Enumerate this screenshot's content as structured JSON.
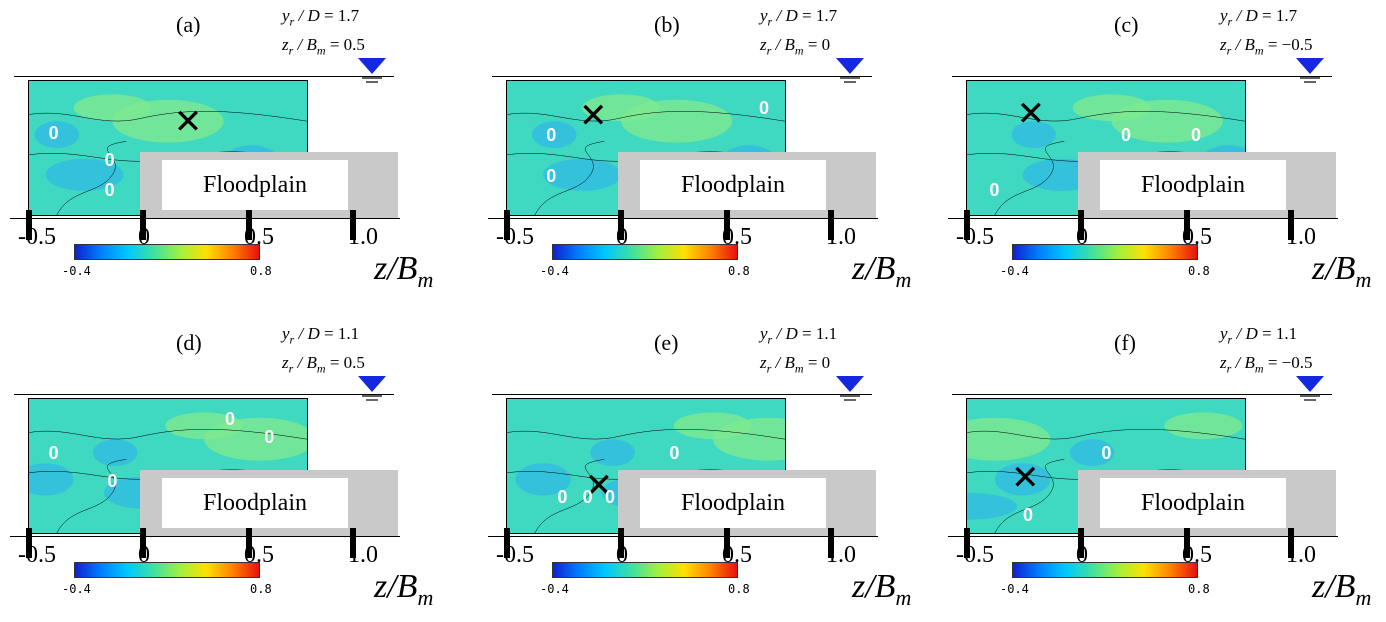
{
  "panels": [
    {
      "label": "(a)",
      "yr_D": "1.7",
      "zr_Bm": "0.5"
    },
    {
      "label": "(b)",
      "yr_D": "1.7",
      "zr_Bm": "0"
    },
    {
      "label": "(c)",
      "yr_D": "1.7",
      "zr_Bm": "−0.5"
    },
    {
      "label": "(d)",
      "yr_D": "1.1",
      "zr_Bm": "0.5"
    },
    {
      "label": "(e)",
      "yr_D": "1.1",
      "zr_Bm": "0"
    },
    {
      "label": "(f)",
      "yr_D": "1.1",
      "zr_Bm": "−0.5"
    }
  ],
  "floodplain_label": "Floodplain",
  "contour_zero_label": "0",
  "cross_marker": "✕",
  "axis_ticks": [
    "-0.5",
    "0",
    "0.5",
    "1.0"
  ],
  "colorbar": {
    "min": "-0.4",
    "max": "0.8"
  },
  "axis_label": {
    "var": "z",
    "sep": "/",
    "base": "B",
    "sub": "m"
  },
  "param_text": {
    "y_var": "y",
    "z_var": "z",
    "sub_r": "r",
    "D": "D",
    "B": "B",
    "sub_m": "m",
    "sep": " / ",
    "eq": " = "
  }
}
